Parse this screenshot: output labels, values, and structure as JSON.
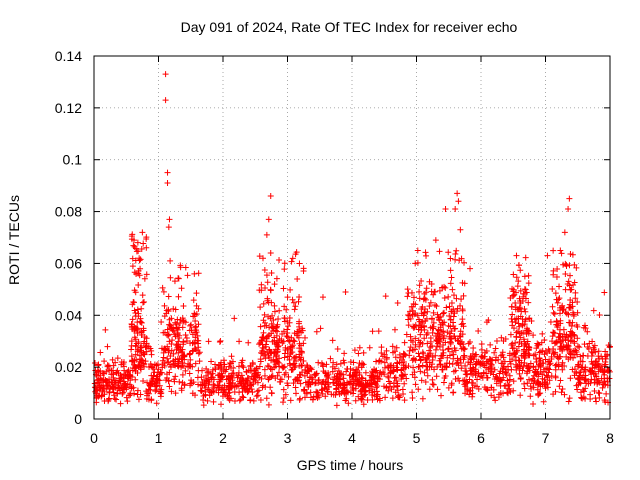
{
  "chart_data": {
    "type": "scatter",
    "title": "Day 091 of 2024, Rate Of TEC Index for receiver echo",
    "xlabel": "GPS time / hours",
    "ylabel": "ROTI / TECUs",
    "xlim": [
      0,
      8
    ],
    "ylim": [
      0,
      0.14
    ],
    "x_ticks": [
      0,
      1,
      2,
      3,
      4,
      5,
      6,
      7,
      8
    ],
    "x_tick_labels": [
      "0",
      "1",
      "2",
      "3",
      "4",
      "5",
      "6",
      "7",
      "8"
    ],
    "y_ticks": [
      0,
      0.02,
      0.04,
      0.06,
      0.08,
      0.1,
      0.12,
      0.14
    ],
    "y_tick_labels": [
      "0",
      "0.02",
      "0.04",
      "0.06",
      "0.08",
      "0.1",
      "0.12",
      "0.14"
    ],
    "grid": true,
    "marker": "plus",
    "series": [
      {
        "name": "ROTI",
        "color": "#ff0000",
        "highlights": [
          {
            "x": 1.11,
            "y": 0.133
          },
          {
            "x": 1.11,
            "y": 0.123
          },
          {
            "x": 1.14,
            "y": 0.095
          },
          {
            "x": 1.14,
            "y": 0.091
          },
          {
            "x": 1.17,
            "y": 0.077
          },
          {
            "x": 1.16,
            "y": 0.074
          },
          {
            "x": 1.18,
            "y": 0.061
          },
          {
            "x": 0.62,
            "y": 0.069
          },
          {
            "x": 0.68,
            "y": 0.068
          },
          {
            "x": 0.75,
            "y": 0.072
          },
          {
            "x": 0.7,
            "y": 0.062
          },
          {
            "x": 0.62,
            "y": 0.045
          },
          {
            "x": 2.74,
            "y": 0.086
          },
          {
            "x": 2.71,
            "y": 0.077
          },
          {
            "x": 2.68,
            "y": 0.071
          },
          {
            "x": 2.74,
            "y": 0.064
          },
          {
            "x": 2.62,
            "y": 0.062
          },
          {
            "x": 3.15,
            "y": 0.054
          },
          {
            "x": 3.9,
            "y": 0.049
          },
          {
            "x": 5.45,
            "y": 0.081
          },
          {
            "x": 5.63,
            "y": 0.087
          },
          {
            "x": 5.65,
            "y": 0.084
          },
          {
            "x": 5.6,
            "y": 0.081
          },
          {
            "x": 5.68,
            "y": 0.073
          },
          {
            "x": 5.3,
            "y": 0.069
          },
          {
            "x": 5.02,
            "y": 0.065
          },
          {
            "x": 4.98,
            "y": 0.06
          },
          {
            "x": 7.37,
            "y": 0.085
          },
          {
            "x": 7.35,
            "y": 0.081
          },
          {
            "x": 7.3,
            "y": 0.072
          },
          {
            "x": 7.23,
            "y": 0.065
          },
          {
            "x": 7.03,
            "y": 0.063
          },
          {
            "x": 6.55,
            "y": 0.063
          },
          {
            "x": 5.83,
            "y": 0.058
          },
          {
            "x": 6.68,
            "y": 0.055
          },
          {
            "x": 3.55,
            "y": 0.047
          }
        ],
        "bursts": [
          {
            "x_from": 0.58,
            "x_to": 0.82,
            "y_max": 0.073
          },
          {
            "x_from": 1.05,
            "x_to": 1.65,
            "y_max": 0.06
          },
          {
            "x_from": 2.55,
            "x_to": 3.25,
            "y_max": 0.066
          },
          {
            "x_from": 4.85,
            "x_to": 5.75,
            "y_max": 0.065
          },
          {
            "x_from": 6.45,
            "x_to": 6.75,
            "y_max": 0.063
          },
          {
            "x_from": 7.1,
            "x_to": 7.5,
            "y_max": 0.065
          }
        ],
        "baseline": {
          "x_from": 0,
          "x_to": 8,
          "typical_min": 0.005,
          "typical_max": 0.04
        }
      }
    ]
  }
}
